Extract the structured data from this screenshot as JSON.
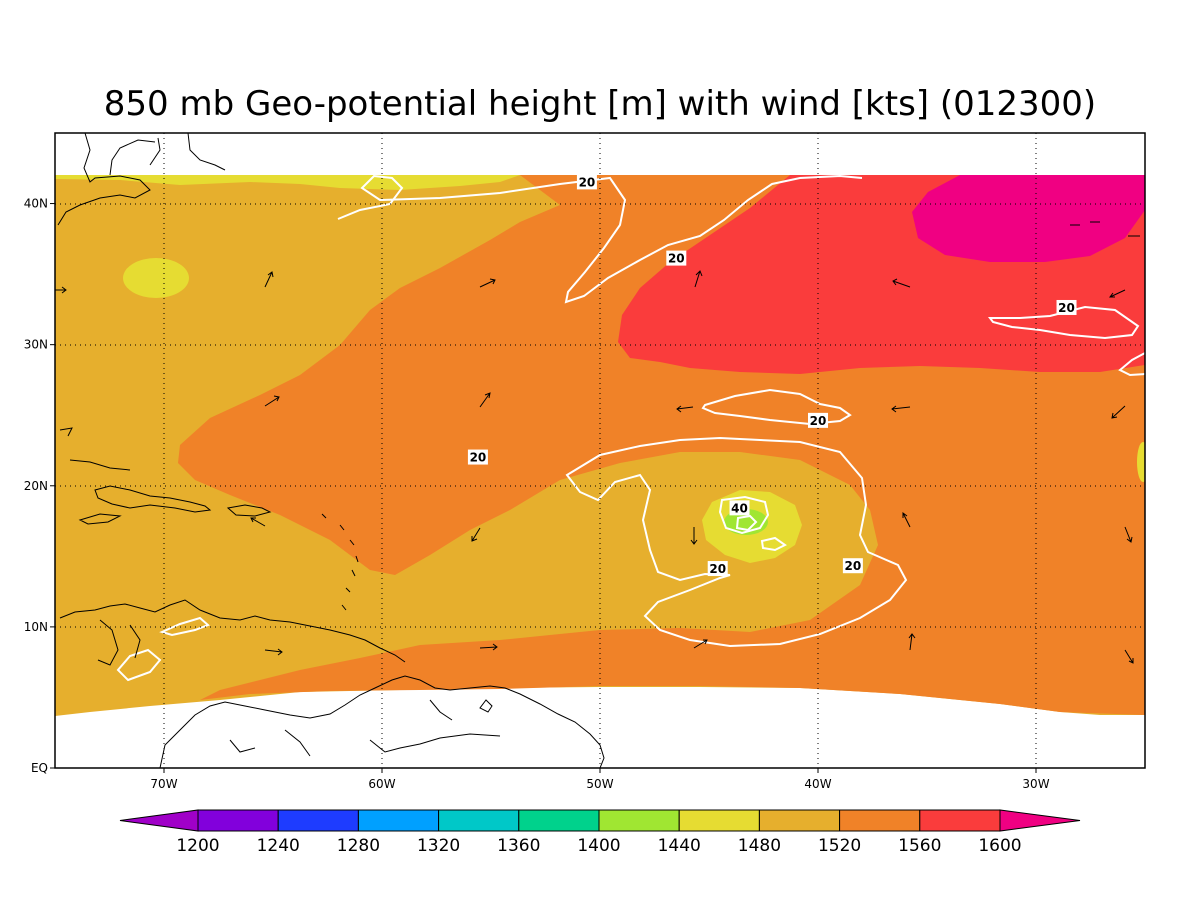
{
  "figure": {
    "title": "850 mb Geo-potential height [m] with wind [kts] (012300)"
  },
  "map": {
    "lon_range": [
      -75,
      -25
    ],
    "lat_range": [
      0,
      45
    ],
    "lon_ticks": [
      {
        "value": -70,
        "label": "70W"
      },
      {
        "value": -60,
        "label": "60W"
      },
      {
        "value": -50,
        "label": "50W"
      },
      {
        "value": -40,
        "label": "40W"
      },
      {
        "value": -30,
        "label": "30W"
      }
    ],
    "lat_ticks": [
      {
        "value": 0,
        "label": "EQ"
      },
      {
        "value": 10,
        "label": "10N"
      },
      {
        "value": 20,
        "label": "20N"
      },
      {
        "value": 30,
        "label": "30N"
      },
      {
        "value": 40,
        "label": "40N"
      }
    ],
    "gridlines": "dotted",
    "contour_labels": [
      {
        "text": "20",
        "lon": -50.6,
        "lat": 41.5
      },
      {
        "text": "20",
        "lon": -46.5,
        "lat": 36.1
      },
      {
        "text": "20",
        "lon": -28.6,
        "lat": 32.6
      },
      {
        "text": "20",
        "lon": -40.0,
        "lat": 24.6
      },
      {
        "text": "20",
        "lon": -55.6,
        "lat": 22.0
      },
      {
        "text": "40",
        "lon": -43.6,
        "lat": 18.4
      },
      {
        "text": "20",
        "lon": -44.6,
        "lat": 14.1
      },
      {
        "text": "20",
        "lon": -38.4,
        "lat": 14.3
      }
    ]
  },
  "colorbar": {
    "labels": [
      "1200",
      "1240",
      "1280",
      "1320",
      "1360",
      "1400",
      "1440",
      "1480",
      "1520",
      "1560",
      "1600"
    ],
    "colors": [
      "#a000c8",
      "#8200dc",
      "#1e3cff",
      "#00a0ff",
      "#00c8c8",
      "#00d28c",
      "#a0e632",
      "#e6dc32",
      "#e6af2d",
      "#f08228",
      "#fa3c3c",
      "#f00082"
    ]
  },
  "colors": {
    "lev_1480": "#e6dc32",
    "lev_1520": "#e6af2d",
    "lev_1560": "#f08228",
    "lev_1600": "#fa3c3c",
    "lev_above": "#f00082",
    "lev_1440": "#a0e632",
    "contour": "#ffffff",
    "coast": "#000000"
  }
}
